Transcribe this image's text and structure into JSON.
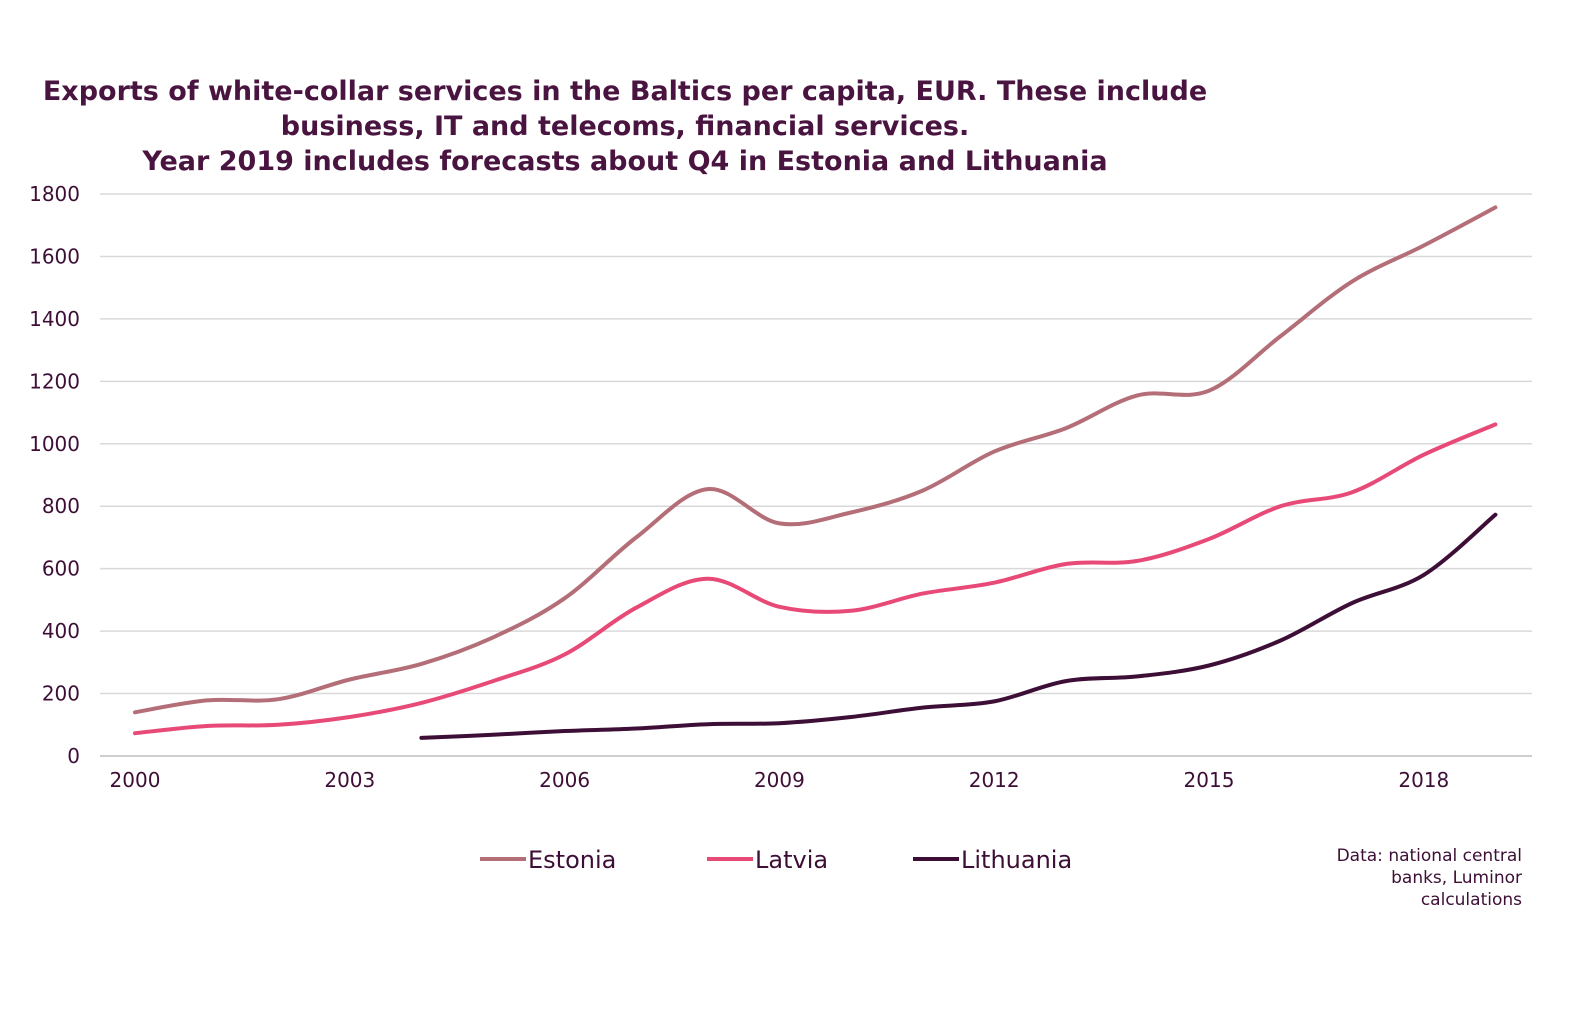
{
  "chart_data": {
    "type": "line",
    "title_lines": [
      "Exports of white-collar services in the Baltics per capita, EUR. These include",
      "business, IT and telecoms, financial services.",
      "Year 2019 includes forecasts about Q4 in Estonia and Lithuania"
    ],
    "x": [
      2000,
      2001,
      2002,
      2003,
      2004,
      2005,
      2006,
      2007,
      2008,
      2009,
      2010,
      2011,
      2012,
      2013,
      2014,
      2015,
      2016,
      2017,
      2018,
      2019
    ],
    "x_ticks": [
      "2000",
      "2003",
      "2006",
      "2009",
      "2012",
      "2015",
      "2018"
    ],
    "y_ticks": [
      "0",
      "200",
      "400",
      "600",
      "800",
      "1000",
      "1200",
      "1400",
      "1600",
      "1800"
    ],
    "ylim": [
      0,
      1800
    ],
    "grid": true,
    "legend_position": "bottom",
    "series": [
      {
        "name": "Estonia",
        "color": "#b46e78",
        "values": [
          140,
          178,
          182,
          245,
          295,
          380,
          505,
          700,
          855,
          745,
          780,
          850,
          975,
          1050,
          1155,
          1170,
          1345,
          1520,
          1635,
          1757
        ]
      },
      {
        "name": "Latvia",
        "color": "#e84a78",
        "values": [
          73,
          96,
          100,
          125,
          170,
          240,
          325,
          475,
          568,
          478,
          465,
          520,
          555,
          615,
          625,
          695,
          800,
          845,
          965,
          1062
        ]
      },
      {
        "name": "Lithuania",
        "color": "#3d0f36",
        "values": [
          null,
          null,
          null,
          null,
          58,
          68,
          80,
          88,
          102,
          105,
          125,
          155,
          175,
          240,
          255,
          290,
          370,
          490,
          580,
          773
        ]
      }
    ]
  },
  "source_note_lines": [
    "Data: national central",
    "banks, Luminor",
    "calculations"
  ]
}
